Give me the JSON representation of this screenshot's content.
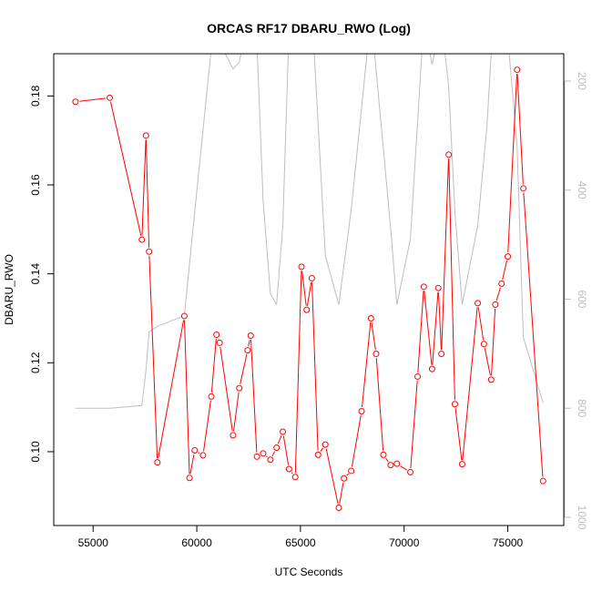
{
  "colors": {
    "series": "#ff0000",
    "secondary": "#bebebe",
    "axis": "#000000",
    "right_axis": "#bebebe",
    "background": "#ffffff"
  },
  "chart_data": {
    "type": "line",
    "title": "ORCAS RF17 DBARU_RWO (Log)",
    "xlabel": "UTC Seconds",
    "ylabel": "DBARU_RWO",
    "xlim": [
      53100,
      77700
    ],
    "ylim": [
      0.0834,
      0.1895
    ],
    "y2lim": [
      1015,
      150
    ],
    "y2_reversed": true,
    "grid": false,
    "x_ticks": [
      55000,
      60000,
      65000,
      70000,
      75000
    ],
    "x_tick_labels": [
      "55000",
      "60000",
      "65000",
      "70000",
      "75000"
    ],
    "y_ticks": [
      0.1,
      0.12,
      0.14,
      0.16,
      0.18
    ],
    "y_tick_labels": [
      "0.10",
      "0.12",
      "0.14",
      "0.16",
      "0.18"
    ],
    "y2_ticks": [
      200,
      400,
      600,
      800,
      1000
    ],
    "y2_tick_labels": [
      "200",
      "400",
      "600",
      "800",
      "1000"
    ],
    "series": [
      {
        "axis": "left",
        "color": "#ff0000",
        "marker": "open-circle",
        "x": [
          54150,
          55800,
          57350,
          57550,
          57700,
          58100,
          59400,
          59650,
          59900,
          60300,
          60700,
          60950,
          61100,
          61750,
          62050,
          62450,
          62600,
          62900,
          63200,
          63550,
          63850,
          64150,
          64450,
          64750,
          65050,
          65300,
          65550,
          65850,
          66200,
          66850,
          67100,
          67450,
          67950,
          68400,
          68650,
          69000,
          69350,
          69650,
          70300,
          70650,
          70950,
          71350,
          71650,
          71800,
          72150,
          72450,
          72800,
          73550,
          73850,
          74200,
          74400,
          74700,
          75000,
          75450,
          75750,
          76700
        ],
        "y": [
          0.1787,
          0.1796,
          0.1477,
          0.1711,
          0.145,
          0.0976,
          0.1305,
          0.0941,
          0.1003,
          0.0992,
          0.1124,
          0.1263,
          0.1245,
          0.1037,
          0.1143,
          0.1228,
          0.1261,
          0.0989,
          0.0996,
          0.0982,
          0.1009,
          0.1045,
          0.0961,
          0.0943,
          0.1416,
          0.1319,
          0.139,
          0.0993,
          0.1016,
          0.0874,
          0.094,
          0.0957,
          0.1091,
          0.13,
          0.122,
          0.0993,
          0.097,
          0.0973,
          0.0954,
          0.1169,
          0.1371,
          0.1186,
          0.1368,
          0.122,
          0.1668,
          0.1107,
          0.0972,
          0.1334,
          0.1242,
          0.1162,
          0.1331,
          0.1378,
          0.1439,
          0.1859,
          0.1592,
          0.0934
        ]
      },
      {
        "axis": "right",
        "color": "#bebebe",
        "marker": "none",
        "x": [
          54150,
          55800,
          57350,
          57550,
          57700,
          58100,
          59400,
          59900,
          60700,
          61100,
          61750,
          62050,
          62600,
          62900,
          63200,
          63550,
          63850,
          64150,
          64450,
          65050,
          65550,
          66200,
          66850,
          67450,
          68400,
          68650,
          69350,
          69650,
          70300,
          70950,
          71350,
          71800,
          72150,
          72450,
          72800,
          73550,
          74000,
          74400,
          74700,
          75000,
          75450,
          75750,
          76700
        ],
        "y": [
          800,
          800,
          795,
          730,
          660,
          650,
          630,
          440,
          140,
          130,
          178,
          165,
          60,
          130,
          420,
          590,
          610,
          465,
          100,
          60,
          70,
          520,
          610,
          435,
          80,
          180,
          470,
          610,
          490,
          90,
          170,
          90,
          210,
          440,
          610,
          465,
          280,
          20,
          50,
          120,
          320,
          670,
          790
        ]
      }
    ]
  }
}
